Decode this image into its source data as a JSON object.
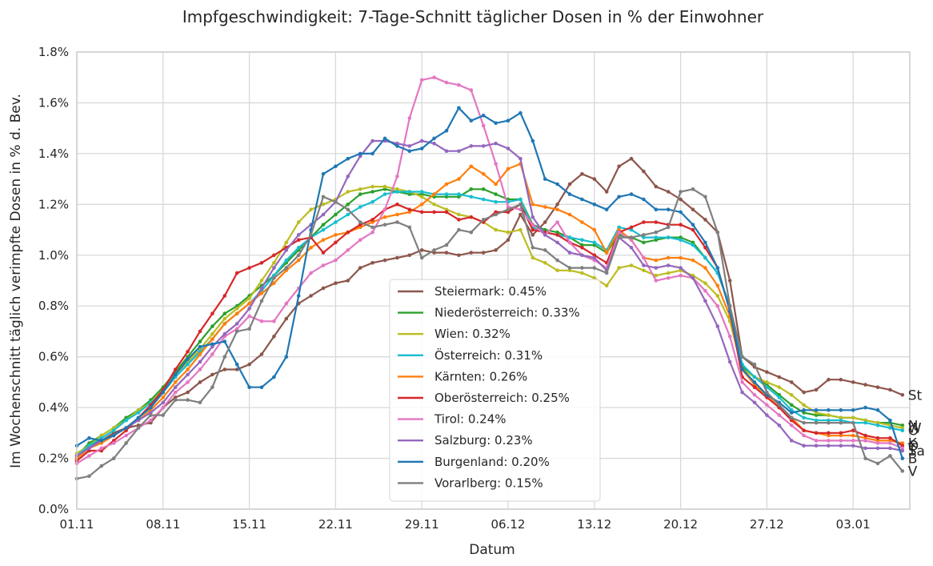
{
  "chart_data": {
    "type": "line",
    "title": "Impfgeschwindigkeit: 7-Tage-Schnitt täglicher Dosen in % der Einwohner",
    "xlabel": "Datum",
    "ylabel": "Im Wochenschnitt täglich verimpfte Dosen in % d. Bev.",
    "x_start": "2021-11-01",
    "x_ticks": [
      "01.11",
      "08.11",
      "15.11",
      "22.11",
      "29.11",
      "06.12",
      "13.12",
      "20.12",
      "27.12",
      "03.01"
    ],
    "y_ticks": [
      "0.0%",
      "0.2%",
      "0.4%",
      "0.6%",
      "0.8%",
      "1.0%",
      "1.2%",
      "1.4%",
      "1.6%",
      "1.8%"
    ],
    "ylim": [
      0,
      1.8
    ],
    "xlim": [
      "2021-11-01",
      "2022-01-07"
    ],
    "grid": true,
    "legend_position": "center-bottom",
    "x": [
      "2021-11-01",
      "2021-11-02",
      "2021-11-03",
      "2021-11-04",
      "2021-11-05",
      "2021-11-06",
      "2021-11-07",
      "2021-11-08",
      "2021-11-09",
      "2021-11-10",
      "2021-11-11",
      "2021-11-12",
      "2021-11-13",
      "2021-11-14",
      "2021-11-15",
      "2021-11-16",
      "2021-11-17",
      "2021-11-18",
      "2021-11-19",
      "2021-11-20",
      "2021-11-21",
      "2021-11-22",
      "2021-11-23",
      "2021-11-24",
      "2021-11-25",
      "2021-11-26",
      "2021-11-27",
      "2021-11-28",
      "2021-11-29",
      "2021-11-30",
      "2021-12-01",
      "2021-12-02",
      "2021-12-03",
      "2021-12-04",
      "2021-12-05",
      "2021-12-06",
      "2021-12-07",
      "2021-12-08",
      "2021-12-09",
      "2021-12-10",
      "2021-12-11",
      "2021-12-12",
      "2021-12-13",
      "2021-12-14",
      "2021-12-15",
      "2021-12-16",
      "2021-12-17",
      "2021-12-18",
      "2021-12-19",
      "2021-12-20",
      "2021-12-21",
      "2021-12-22",
      "2021-12-23",
      "2021-12-24",
      "2021-12-25",
      "2021-12-26",
      "2021-12-27",
      "2021-12-28",
      "2021-12-29",
      "2021-12-30",
      "2021-12-31",
      "2022-01-01",
      "2022-01-02",
      "2022-01-03",
      "2022-01-04",
      "2022-01-05",
      "2022-01-06",
      "2022-01-07"
    ],
    "series": [
      {
        "name": "Steiermark",
        "legend": "Steiermark: 0.45%",
        "end_label": "St",
        "color": "#8c564b",
        "values": [
          0.2,
          0.25,
          0.27,
          0.3,
          0.32,
          0.33,
          0.34,
          0.4,
          0.44,
          0.46,
          0.5,
          0.53,
          0.55,
          0.55,
          0.57,
          0.61,
          0.68,
          0.75,
          0.81,
          0.84,
          0.87,
          0.89,
          0.9,
          0.95,
          0.97,
          0.98,
          0.99,
          1.0,
          1.02,
          1.01,
          1.01,
          1.0,
          1.01,
          1.01,
          1.02,
          1.06,
          1.16,
          1.08,
          1.13,
          1.2,
          1.28,
          1.32,
          1.3,
          1.25,
          1.35,
          1.38,
          1.33,
          1.27,
          1.25,
          1.22,
          1.18,
          1.14,
          1.09,
          0.9,
          0.6,
          0.56,
          0.54,
          0.52,
          0.5,
          0.46,
          0.47,
          0.51,
          0.51,
          0.5,
          0.49,
          0.48,
          0.47,
          0.45
        ]
      },
      {
        "name": "Niederösterreich",
        "legend": "Niederösterreich: 0.33%",
        "end_label": "N",
        "color": "#2ca02c",
        "values": [
          0.21,
          0.26,
          0.29,
          0.32,
          0.36,
          0.39,
          0.43,
          0.48,
          0.54,
          0.6,
          0.66,
          0.72,
          0.77,
          0.8,
          0.84,
          0.88,
          0.92,
          0.97,
          1.02,
          1.07,
          1.12,
          1.16,
          1.2,
          1.24,
          1.25,
          1.26,
          1.25,
          1.24,
          1.24,
          1.23,
          1.23,
          1.23,
          1.26,
          1.26,
          1.24,
          1.22,
          1.22,
          1.12,
          1.1,
          1.09,
          1.07,
          1.04,
          1.04,
          1.01,
          1.08,
          1.07,
          1.05,
          1.06,
          1.07,
          1.07,
          1.05,
          0.99,
          0.93,
          0.8,
          0.56,
          0.52,
          0.49,
          0.45,
          0.41,
          0.38,
          0.37,
          0.37,
          0.36,
          0.36,
          0.35,
          0.34,
          0.34,
          0.33
        ]
      },
      {
        "name": "Wien",
        "legend": "Wien: 0.32%",
        "end_label": "W",
        "color": "#bcbd22",
        "values": [
          0.22,
          0.25,
          0.29,
          0.32,
          0.35,
          0.39,
          0.42,
          0.47,
          0.53,
          0.58,
          0.63,
          0.69,
          0.75,
          0.79,
          0.83,
          0.9,
          0.97,
          1.05,
          1.13,
          1.18,
          1.2,
          1.22,
          1.25,
          1.26,
          1.27,
          1.27,
          1.26,
          1.25,
          1.23,
          1.2,
          1.18,
          1.16,
          1.15,
          1.13,
          1.1,
          1.09,
          1.1,
          0.99,
          0.97,
          0.94,
          0.94,
          0.93,
          0.91,
          0.88,
          0.95,
          0.96,
          0.94,
          0.92,
          0.93,
          0.94,
          0.92,
          0.89,
          0.84,
          0.74,
          0.55,
          0.52,
          0.5,
          0.48,
          0.45,
          0.41,
          0.38,
          0.37,
          0.36,
          0.36,
          0.35,
          0.34,
          0.33,
          0.32
        ]
      },
      {
        "name": "Österreich",
        "legend": "Österreich: 0.31%",
        "end_label": "Ö",
        "color": "#17becf",
        "values": [
          0.21,
          0.25,
          0.28,
          0.31,
          0.35,
          0.38,
          0.42,
          0.46,
          0.52,
          0.57,
          0.62,
          0.67,
          0.73,
          0.77,
          0.81,
          0.86,
          0.92,
          0.98,
          1.03,
          1.07,
          1.1,
          1.13,
          1.16,
          1.19,
          1.21,
          1.24,
          1.25,
          1.25,
          1.25,
          1.24,
          1.24,
          1.24,
          1.23,
          1.22,
          1.21,
          1.21,
          1.22,
          1.11,
          1.09,
          1.08,
          1.07,
          1.06,
          1.05,
          1.02,
          1.11,
          1.1,
          1.07,
          1.07,
          1.07,
          1.06,
          1.04,
          0.99,
          0.93,
          0.8,
          0.57,
          0.52,
          0.48,
          0.44,
          0.39,
          0.36,
          0.35,
          0.35,
          0.35,
          0.34,
          0.34,
          0.33,
          0.32,
          0.31
        ]
      },
      {
        "name": "Kärnten",
        "legend": "Kärnten: 0.26%",
        "end_label": "K",
        "color": "#ff7f0e",
        "values": [
          0.2,
          0.24,
          0.26,
          0.29,
          0.32,
          0.35,
          0.39,
          0.44,
          0.5,
          0.55,
          0.61,
          0.67,
          0.73,
          0.77,
          0.81,
          0.85,
          0.89,
          0.94,
          0.98,
          1.03,
          1.06,
          1.08,
          1.09,
          1.11,
          1.13,
          1.15,
          1.16,
          1.17,
          1.2,
          1.24,
          1.28,
          1.3,
          1.35,
          1.32,
          1.28,
          1.34,
          1.36,
          1.2,
          1.19,
          1.18,
          1.16,
          1.13,
          1.1,
          1.01,
          1.1,
          1.06,
          0.99,
          0.98,
          0.99,
          0.99,
          0.98,
          0.95,
          0.88,
          0.76,
          0.55,
          0.49,
          0.45,
          0.41,
          0.36,
          0.31,
          0.3,
          0.29,
          0.29,
          0.29,
          0.28,
          0.27,
          0.27,
          0.26
        ]
      },
      {
        "name": "Oberösterreich",
        "legend": "Oberösterreich: 0.25%",
        "end_label": "O",
        "color": "#d62728",
        "values": [
          0.19,
          0.23,
          0.23,
          0.27,
          0.31,
          0.36,
          0.41,
          0.47,
          0.55,
          0.62,
          0.7,
          0.77,
          0.84,
          0.93,
          0.95,
          0.97,
          1.0,
          1.03,
          1.06,
          1.07,
          1.01,
          1.05,
          1.09,
          1.12,
          1.14,
          1.18,
          1.2,
          1.18,
          1.17,
          1.17,
          1.17,
          1.14,
          1.15,
          1.13,
          1.17,
          1.17,
          1.2,
          1.1,
          1.09,
          1.08,
          1.05,
          1.03,
          1.0,
          0.97,
          1.09,
          1.11,
          1.13,
          1.13,
          1.12,
          1.12,
          1.1,
          1.03,
          0.95,
          0.78,
          0.52,
          0.48,
          0.44,
          0.4,
          0.35,
          0.31,
          0.3,
          0.3,
          0.3,
          0.31,
          0.29,
          0.28,
          0.28,
          0.25
        ]
      },
      {
        "name": "Tirol",
        "legend": "Tirol: 0.24%",
        "end_label": "T",
        "color": "#e377c2",
        "values": [
          0.18,
          0.21,
          0.24,
          0.26,
          0.29,
          0.32,
          0.35,
          0.4,
          0.46,
          0.5,
          0.55,
          0.61,
          0.68,
          0.71,
          0.76,
          0.74,
          0.74,
          0.81,
          0.87,
          0.93,
          0.96,
          0.98,
          1.02,
          1.06,
          1.09,
          1.18,
          1.31,
          1.54,
          1.69,
          1.7,
          1.68,
          1.67,
          1.65,
          1.51,
          1.36,
          1.19,
          1.18,
          1.12,
          1.08,
          1.13,
          1.05,
          1.0,
          0.98,
          0.95,
          1.09,
          1.06,
          0.99,
          0.9,
          0.91,
          0.92,
          0.91,
          0.86,
          0.8,
          0.68,
          0.5,
          0.45,
          0.41,
          0.37,
          0.33,
          0.29,
          0.27,
          0.27,
          0.27,
          0.27,
          0.27,
          0.26,
          0.26,
          0.24
        ]
      },
      {
        "name": "Salzburg",
        "legend": "Salzburg: 0.23%",
        "end_label": "Sa",
        "color": "#9467bd",
        "values": [
          0.21,
          0.24,
          0.27,
          0.29,
          0.32,
          0.35,
          0.38,
          0.42,
          0.48,
          0.53,
          0.58,
          0.64,
          0.69,
          0.73,
          0.79,
          0.87,
          0.95,
          1.02,
          1.08,
          1.12,
          1.16,
          1.21,
          1.31,
          1.39,
          1.45,
          1.45,
          1.44,
          1.43,
          1.45,
          1.44,
          1.41,
          1.41,
          1.43,
          1.43,
          1.44,
          1.42,
          1.38,
          1.15,
          1.08,
          1.05,
          1.01,
          1.0,
          0.99,
          0.94,
          1.07,
          1.03,
          0.96,
          0.95,
          0.96,
          0.95,
          0.91,
          0.82,
          0.72,
          0.58,
          0.46,
          0.42,
          0.37,
          0.33,
          0.27,
          0.25,
          0.25,
          0.25,
          0.25,
          0.25,
          0.24,
          0.24,
          0.24,
          0.23
        ]
      },
      {
        "name": "Burgenland",
        "legend": "Burgenland: 0.20%",
        "end_label": "B",
        "color": "#1f77b4",
        "values": [
          0.25,
          0.28,
          0.27,
          0.29,
          0.32,
          0.36,
          0.4,
          0.46,
          0.53,
          0.59,
          0.64,
          0.65,
          0.66,
          0.57,
          0.48,
          0.48,
          0.52,
          0.6,
          0.84,
          1.1,
          1.32,
          1.35,
          1.38,
          1.4,
          1.4,
          1.46,
          1.43,
          1.41,
          1.42,
          1.46,
          1.49,
          1.58,
          1.53,
          1.55,
          1.52,
          1.53,
          1.56,
          1.45,
          1.3,
          1.28,
          1.24,
          1.22,
          1.2,
          1.18,
          1.23,
          1.24,
          1.22,
          1.18,
          1.18,
          1.17,
          1.12,
          1.05,
          0.95,
          0.78,
          0.55,
          0.5,
          0.45,
          0.42,
          0.38,
          0.39,
          0.39,
          0.39,
          0.39,
          0.39,
          0.4,
          0.39,
          0.35,
          0.2
        ]
      },
      {
        "name": "Vorarlberg",
        "legend": "Vorarlberg: 0.15%",
        "end_label": "V",
        "color": "#7f7f7f",
        "values": [
          0.12,
          0.13,
          0.17,
          0.2,
          0.26,
          0.32,
          0.37,
          0.37,
          0.43,
          0.43,
          0.42,
          0.48,
          0.6,
          0.7,
          0.71,
          0.82,
          0.91,
          0.95,
          1.0,
          1.08,
          1.23,
          1.21,
          1.18,
          1.13,
          1.11,
          1.12,
          1.13,
          1.11,
          0.99,
          1.02,
          1.04,
          1.1,
          1.09,
          1.14,
          1.16,
          1.18,
          1.2,
          1.03,
          1.02,
          0.98,
          0.95,
          0.95,
          0.95,
          0.93,
          1.07,
          1.07,
          1.08,
          1.09,
          1.11,
          1.25,
          1.26,
          1.23,
          1.09,
          0.8,
          0.6,
          0.57,
          0.46,
          0.41,
          0.36,
          0.34,
          0.34,
          0.34,
          0.34,
          0.34,
          0.2,
          0.18,
          0.21,
          0.15
        ]
      }
    ]
  }
}
